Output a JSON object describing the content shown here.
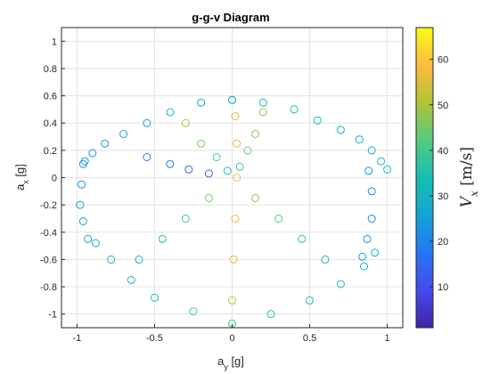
{
  "chart_data": {
    "type": "scatter",
    "title": "g-g-v Diagram",
    "xlabel": "a_y [g]",
    "ylabel": "a_x [g]",
    "xlim": [
      -1.1,
      1.1
    ],
    "ylim": [
      -1.1,
      1.1
    ],
    "xticks": [
      "-1",
      "-0.5",
      "0",
      "0.5",
      "1"
    ],
    "yticks": [
      "-1",
      "-0.8",
      "-0.6",
      "-0.4",
      "-0.2",
      "0",
      "0.2",
      "0.4",
      "0.6",
      "0.8",
      "1"
    ],
    "xtick_values": [
      -1,
      -0.5,
      0,
      0.5,
      1
    ],
    "ytick_values": [
      -1,
      -0.8,
      -0.6,
      -0.4,
      -0.2,
      0,
      0.2,
      0.4,
      0.6,
      0.8,
      1
    ],
    "grid": true,
    "marker": "open-circle",
    "colormap": "parula",
    "colorbar": {
      "label": "V_x [m/s]",
      "label_var": "V",
      "label_sub": "x",
      "label_units": " [m/s]",
      "range": [
        1,
        67
      ],
      "ticks": [
        "10",
        "20",
        "30",
        "40",
        "50",
        "60"
      ],
      "tick_values": [
        10,
        20,
        30,
        40,
        50,
        60
      ]
    },
    "series": [
      {
        "x": [
          0.0,
          0.2,
          0.4,
          0.55,
          0.7,
          0.82,
          0.9,
          0.96,
          1.0
        ],
        "y": [
          0.57,
          0.55,
          0.5,
          0.42,
          0.35,
          0.28,
          0.2,
          0.12,
          0.06
        ],
        "v": [
          30,
          32,
          35,
          33,
          30,
          28,
          30,
          32,
          34
        ]
      },
      {
        "x": [
          0.0,
          -0.2,
          -0.4,
          -0.55,
          -0.7,
          -0.82,
          -0.9,
          -0.96
        ],
        "y": [
          0.57,
          0.55,
          0.48,
          0.4,
          0.32,
          0.25,
          0.18,
          0.1
        ],
        "v": [
          30,
          28,
          30,
          27,
          25,
          24,
          22,
          23
        ]
      },
      {
        "x": [
          0.0,
          0.25,
          0.5,
          0.7,
          0.85,
          0.92
        ],
        "y": [
          -1.07,
          -1.0,
          -0.9,
          -0.78,
          -0.65,
          -0.55
        ],
        "v": [
          40,
          36,
          34,
          32,
          30,
          29
        ]
      },
      {
        "x": [
          0.0,
          -0.25,
          -0.5,
          -0.65,
          -0.78,
          -0.88
        ],
        "y": [
          -1.07,
          -0.98,
          -0.88,
          -0.75,
          -0.6,
          -0.48
        ],
        "v": [
          42,
          38,
          35,
          33,
          32,
          30
        ]
      },
      {
        "x": [
          -0.95,
          -0.97,
          -0.98,
          -0.96,
          -0.93
        ],
        "y": [
          0.12,
          -0.05,
          -0.2,
          -0.32,
          -0.45
        ],
        "v": [
          22,
          23,
          24,
          25,
          26
        ]
      },
      {
        "x": [
          0.88,
          0.9,
          0.9,
          0.87,
          0.84
        ],
        "y": [
          0.05,
          -0.1,
          -0.3,
          -0.45,
          -0.58
        ],
        "v": [
          22,
          21,
          20,
          22,
          24
        ]
      },
      {
        "x": [
          0.02,
          0.03,
          0.03,
          0.02,
          0.01,
          0.0
        ],
        "y": [
          0.45,
          0.25,
          0.0,
          -0.3,
          -0.6,
          -0.9
        ],
        "v": [
          55,
          57,
          58,
          57,
          55,
          53
        ]
      },
      {
        "x": [
          -0.3,
          -0.2,
          -0.1,
          -0.03
        ],
        "y": [
          0.4,
          0.25,
          0.15,
          0.05
        ],
        "v": [
          50,
          45,
          40,
          35
        ]
      },
      {
        "x": [
          0.2,
          0.15,
          0.1,
          0.05
        ],
        "y": [
          0.48,
          0.32,
          0.2,
          0.08
        ],
        "v": [
          48,
          46,
          44,
          40
        ]
      },
      {
        "x": [
          -0.6,
          -0.45,
          -0.3,
          -0.15
        ],
        "y": [
          -0.6,
          -0.45,
          -0.3,
          -0.15
        ],
        "v": [
          30,
          33,
          38,
          45
        ]
      },
      {
        "x": [
          0.6,
          0.45,
          0.3,
          0.15
        ],
        "y": [
          -0.6,
          -0.45,
          -0.3,
          -0.15
        ],
        "v": [
          32,
          36,
          42,
          47
        ]
      },
      {
        "x": [
          -0.55,
          -0.4,
          -0.28,
          -0.15
        ],
        "y": [
          0.15,
          0.1,
          0.06,
          0.03
        ],
        "v": [
          20,
          18,
          16,
          14
        ]
      }
    ]
  }
}
